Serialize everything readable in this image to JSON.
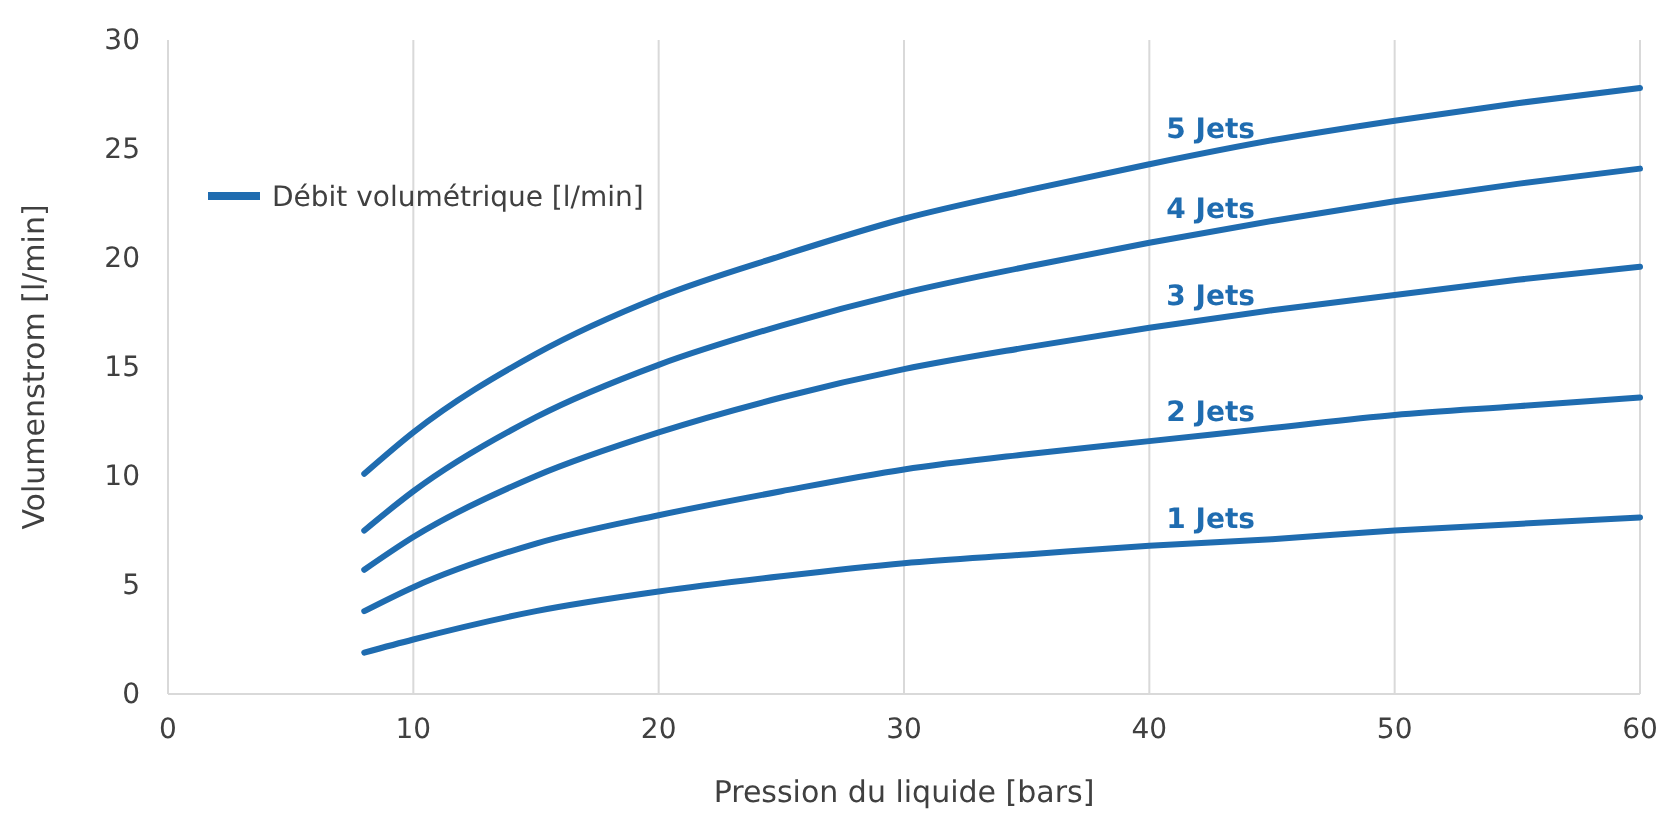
{
  "chart_data": {
    "type": "line",
    "xlabel": "Pression du liquide [bars]",
    "ylabel": "Volumenstrom [l/min]",
    "legend_title": "Débit volumétrique [l/min]",
    "grid": "x",
    "line_style": "solid",
    "x": [
      8,
      10,
      15,
      20,
      25,
      30,
      35,
      40,
      45,
      50,
      55,
      60
    ],
    "xlim": [
      0,
      60
    ],
    "xticks": [
      0,
      10,
      20,
      30,
      40,
      50,
      60
    ],
    "ylim": [
      0,
      30
    ],
    "yticks": [
      0,
      5,
      10,
      15,
      20,
      25,
      30
    ],
    "series": [
      {
        "name": "1 Jets",
        "color": "#1f6cb0",
        "values": [
          1.9,
          2.5,
          3.8,
          4.7,
          5.4,
          6.0,
          6.4,
          6.8,
          7.1,
          7.5,
          7.8,
          8.1
        ]
      },
      {
        "name": "2 Jets",
        "color": "#1f6cb0",
        "values": [
          3.8,
          4.9,
          6.9,
          8.2,
          9.3,
          10.3,
          11.0,
          11.6,
          12.2,
          12.8,
          13.2,
          13.6
        ]
      },
      {
        "name": "3 Jets",
        "color": "#1f6cb0",
        "values": [
          5.7,
          7.2,
          10.0,
          12.0,
          13.6,
          14.9,
          15.9,
          16.8,
          17.6,
          18.3,
          19.0,
          19.6
        ]
      },
      {
        "name": "4 Jets",
        "color": "#1f6cb0",
        "values": [
          7.5,
          9.3,
          12.7,
          15.1,
          16.9,
          18.4,
          19.6,
          20.7,
          21.7,
          22.6,
          23.4,
          24.1
        ]
      },
      {
        "name": "5 Jets",
        "color": "#1f6cb0",
        "values": [
          10.1,
          12.0,
          15.6,
          18.2,
          20.1,
          21.8,
          23.1,
          24.3,
          25.4,
          26.3,
          27.1,
          27.8
        ]
      }
    ]
  }
}
